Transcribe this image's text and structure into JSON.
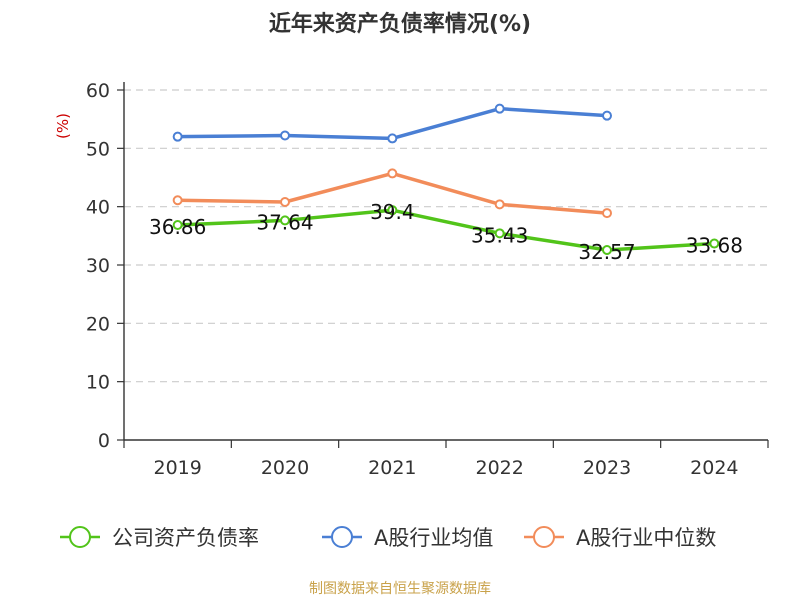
{
  "chart_data": {
    "type": "line",
    "title": "近年来资产负债率情况(%)",
    "ylabel": "(%)",
    "xlabel": "",
    "categories": [
      "2019",
      "2020",
      "2021",
      "2022",
      "2023",
      "2024"
    ],
    "ylim": [
      0,
      60
    ],
    "yticks": [
      0,
      10,
      20,
      30,
      40,
      50,
      60
    ],
    "grid": true,
    "legend_position": "bottom",
    "series": [
      {
        "name": "公司资产负债率",
        "color": "#52c41a",
        "values": [
          36.86,
          37.64,
          39.4,
          35.43,
          32.57,
          33.68
        ],
        "labels": [
          "36.86",
          "37.64",
          "39.4",
          "35.43",
          "32.57",
          "33.68"
        ]
      },
      {
        "name": "A股行业均值",
        "color": "#4a7fd4",
        "values": [
          52.0,
          52.2,
          51.7,
          56.8,
          55.6,
          null
        ]
      },
      {
        "name": "A股行业中位数",
        "color": "#f28c5a",
        "values": [
          41.1,
          40.8,
          45.7,
          40.4,
          38.9,
          null
        ]
      }
    ]
  },
  "footer": "制图数据来自恒生聚源数据库"
}
